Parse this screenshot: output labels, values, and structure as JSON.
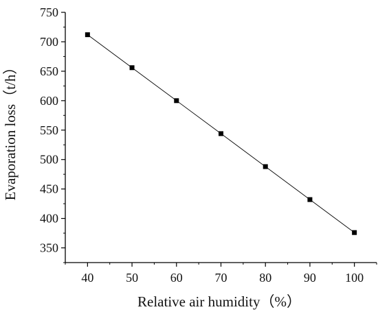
{
  "chart_data": {
    "type": "line",
    "title": "",
    "xlabel": "Relative air humidity（%）",
    "ylabel": "Evaporation loss（t/h）",
    "xlim": [
      35,
      105
    ],
    "ylim": [
      325,
      750
    ],
    "xticks": [
      40,
      50,
      60,
      70,
      80,
      90,
      100
    ],
    "yticks": [
      350,
      400,
      450,
      500,
      550,
      600,
      650,
      700,
      750
    ],
    "grid": false,
    "legend": "none",
    "marker": "square",
    "color": "#000000",
    "x": [
      40,
      50,
      60,
      70,
      80,
      90,
      100
    ],
    "y": [
      712,
      656,
      600,
      544,
      488,
      432,
      376
    ]
  }
}
